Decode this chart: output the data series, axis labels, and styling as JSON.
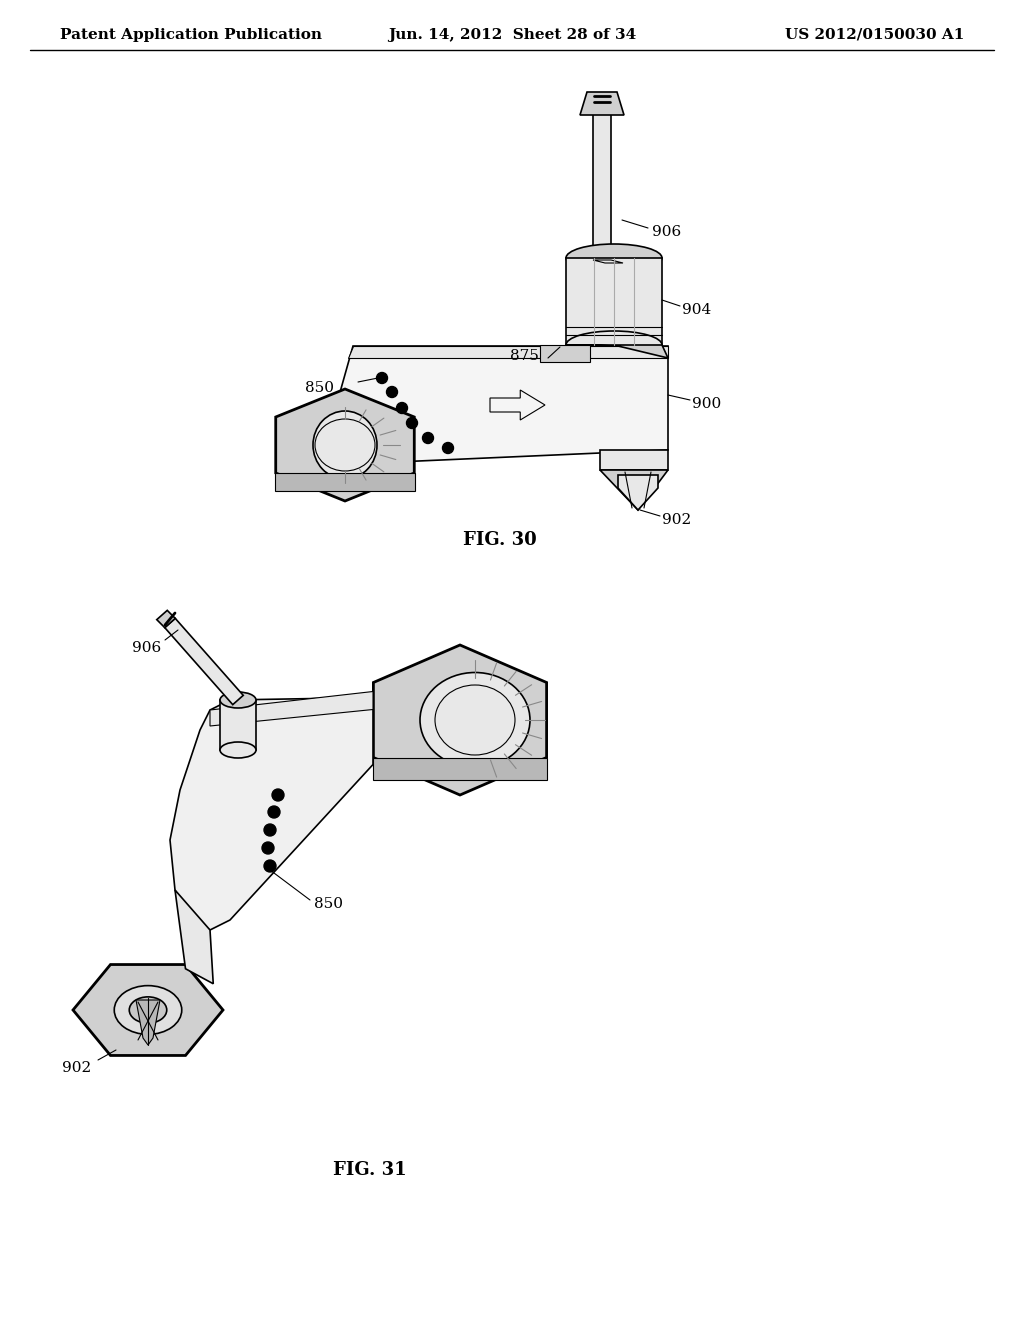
{
  "background_color": "#ffffff",
  "header_left": "Patent Application Publication",
  "header_center": "Jun. 14, 2012  Sheet 28 of 34",
  "header_right": "US 2012/0150030 A1",
  "fig30_label": "FIG. 30",
  "fig31_label": "FIG. 31",
  "line_color": "#000000",
  "text_color": "#000000",
  "gray_light": "#e8e8e8",
  "gray_mid": "#d0d0d0",
  "gray_dark": "#b8b8b8"
}
